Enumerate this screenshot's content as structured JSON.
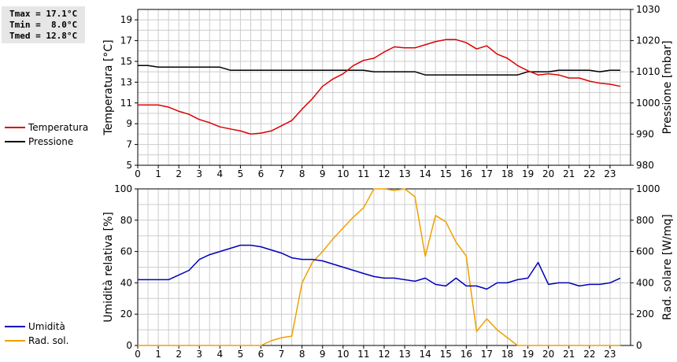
{
  "stats": [
    "Tmax = 17.1°C",
    "Tmin =  8.0°C",
    "Tmed = 12.8°C"
  ],
  "colors": {
    "temperature": "#dd0000",
    "pressure": "#000000",
    "humidity": "#0000bb",
    "solar": "#f0a000",
    "grid": "#cccccc"
  },
  "chart_data": [
    {
      "type": "line",
      "ylabel": "Temperatura [°C]",
      "ylabel_right": "Pressione [mbar]",
      "xlim": [
        0,
        24
      ],
      "ylim": [
        5,
        20
      ],
      "ylim_right": [
        980,
        1030
      ],
      "x_ticks": [
        "0",
        "1",
        "2",
        "3",
        "4",
        "5",
        "6",
        "7",
        "8",
        "9",
        "10",
        "11",
        "12",
        "13",
        "14",
        "15",
        "16",
        "17",
        "18",
        "19",
        "20",
        "21",
        "22",
        "23"
      ],
      "y_ticks": [
        "5",
        "7",
        "9",
        "11",
        "13",
        "15",
        "17",
        "19"
      ],
      "y_ticks_right": [
        "980",
        "990",
        "1000",
        "1010",
        "1020",
        "1030"
      ],
      "grid": true,
      "legend": "left",
      "series": [
        {
          "name": "Temperatura",
          "axis": "left",
          "x": [
            0,
            1,
            1.5,
            2,
            2.5,
            3,
            3.5,
            4,
            4.5,
            5,
            5.5,
            6,
            6.5,
            7,
            7.5,
            8,
            8.5,
            9,
            9.5,
            10,
            10.5,
            11,
            11.5,
            12,
            12.5,
            13,
            13.5,
            14,
            14.5,
            15,
            15.5,
            16,
            16.5,
            17,
            17.5,
            18,
            18.5,
            19,
            19.5,
            20,
            20.5,
            21,
            21.5,
            22,
            22.5,
            23,
            23.5
          ],
          "y": [
            10.8,
            10.8,
            10.6,
            10.2,
            9.9,
            9.4,
            9.1,
            8.7,
            8.5,
            8.3,
            8.0,
            8.1,
            8.3,
            8.8,
            9.3,
            10.4,
            11.4,
            12.6,
            13.3,
            13.8,
            14.6,
            15.1,
            15.3,
            15.9,
            16.4,
            16.3,
            16.3,
            16.6,
            16.9,
            17.1,
            17.1,
            16.8,
            16.2,
            16.5,
            15.7,
            15.3,
            14.6,
            14.1,
            13.7,
            13.8,
            13.7,
            13.4,
            13.4,
            13.1,
            12.9,
            12.8,
            12.6
          ]
        },
        {
          "name": "Pressione",
          "axis": "right",
          "x": [
            0,
            0.5,
            1,
            1.5,
            2,
            3,
            4,
            4.5,
            5,
            6,
            7,
            8,
            9,
            10,
            11,
            11.5,
            12,
            13,
            13.5,
            14,
            15,
            16,
            17,
            18,
            18.5,
            19,
            19.5,
            20,
            20.5,
            21,
            21.5,
            22,
            22.5,
            23,
            23.5
          ],
          "y": [
            1012,
            1012,
            1011.5,
            1011.5,
            1011.5,
            1011.5,
            1011.5,
            1010.5,
            1010.5,
            1010.5,
            1010.5,
            1010.5,
            1010.5,
            1010.5,
            1010.5,
            1010,
            1010,
            1010,
            1010,
            1009,
            1009,
            1009,
            1009,
            1009,
            1009,
            1010,
            1010,
            1010,
            1010.5,
            1010.5,
            1010.5,
            1010.5,
            1010,
            1010.5,
            1010.5
          ]
        }
      ]
    },
    {
      "type": "line",
      "ylabel": "Umidità relativa [%]",
      "ylabel_right": "Rad. solare [W/mq]",
      "xlim": [
        0,
        24
      ],
      "ylim": [
        0,
        100
      ],
      "ylim_right": [
        0,
        1000
      ],
      "x_ticks": [
        "0",
        "1",
        "2",
        "3",
        "4",
        "5",
        "6",
        "7",
        "8",
        "9",
        "10",
        "11",
        "12",
        "13",
        "14",
        "15",
        "16",
        "17",
        "18",
        "19",
        "20",
        "21",
        "22",
        "23"
      ],
      "y_ticks": [
        "0",
        "20",
        "40",
        "60",
        "80",
        "100"
      ],
      "y_ticks_right": [
        "0",
        "200",
        "400",
        "600",
        "800",
        "1000"
      ],
      "grid": true,
      "legend": "left",
      "series": [
        {
          "name": "Umidità",
          "axis": "left",
          "x": [
            0,
            0.5,
            1,
            1.5,
            2,
            2.5,
            3,
            3.5,
            4,
            4.5,
            5,
            5.5,
            6,
            6.5,
            7,
            7.5,
            8,
            8.5,
            9,
            9.5,
            10,
            10.5,
            11,
            11.5,
            12,
            12.5,
            13,
            13.5,
            14,
            14.5,
            15,
            15.5,
            16,
            16.5,
            17,
            17.5,
            18,
            18.5,
            19,
            19.5,
            20,
            20.5,
            21,
            21.5,
            22,
            22.5,
            23,
            23.5
          ],
          "y": [
            42,
            42,
            42,
            42,
            45,
            48,
            55,
            58,
            60,
            62,
            64,
            64,
            63,
            61,
            59,
            56,
            55,
            55,
            54,
            52,
            50,
            48,
            46,
            44,
            43,
            43,
            42,
            41,
            43,
            39,
            38,
            43,
            38,
            38,
            36,
            40,
            40,
            42,
            43,
            53,
            39,
            40,
            40,
            38,
            39,
            39,
            40,
            43
          ]
        },
        {
          "name": "Rad. sol.",
          "axis": "right",
          "x": [
            0,
            1,
            2,
            3,
            4,
            5,
            6,
            6.5,
            7,
            7.5,
            8,
            8.5,
            9,
            9.5,
            10,
            10.5,
            11,
            11.5,
            12,
            12.5,
            13,
            13.5,
            14,
            14.5,
            15,
            15.5,
            16,
            16.5,
            17,
            17.5,
            18,
            18.5,
            19,
            19.5,
            20,
            21,
            22,
            23,
            23.5
          ],
          "y": [
            0,
            0,
            0,
            0,
            0,
            0,
            0,
            30,
            50,
            60,
            400,
            530,
            600,
            680,
            750,
            820,
            880,
            1000,
            1000,
            990,
            1000,
            950,
            570,
            830,
            790,
            660,
            570,
            90,
            170,
            100,
            50,
            0,
            0,
            0,
            0,
            0,
            0,
            0,
            0
          ]
        }
      ]
    }
  ]
}
